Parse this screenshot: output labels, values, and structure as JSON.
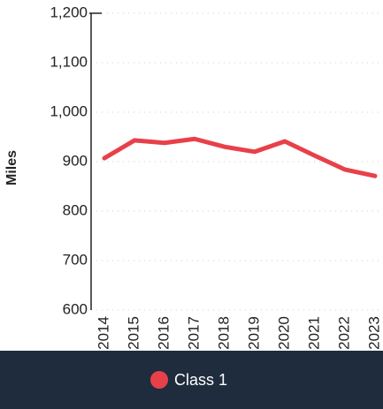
{
  "chart_data": {
    "type": "line",
    "y_label": "Miles",
    "categories": [
      "2014",
      "2015",
      "2016",
      "2017",
      "2018",
      "2019",
      "2020",
      "2021",
      "2022",
      "2023"
    ],
    "series": [
      {
        "name": "Class 1",
        "color": "#e8404a",
        "values": [
          907,
          943,
          938,
          946,
          930,
          920,
          941,
          912,
          884,
          871
        ]
      }
    ],
    "ylim": [
      600,
      1200
    ],
    "yticks": [
      600,
      700,
      800,
      900,
      {
        "value": 1000,
        "label": "1,000"
      },
      {
        "value": 1100,
        "label": "1,100"
      },
      {
        "value": 1200,
        "label": "1,200"
      }
    ],
    "grid": true
  }
}
